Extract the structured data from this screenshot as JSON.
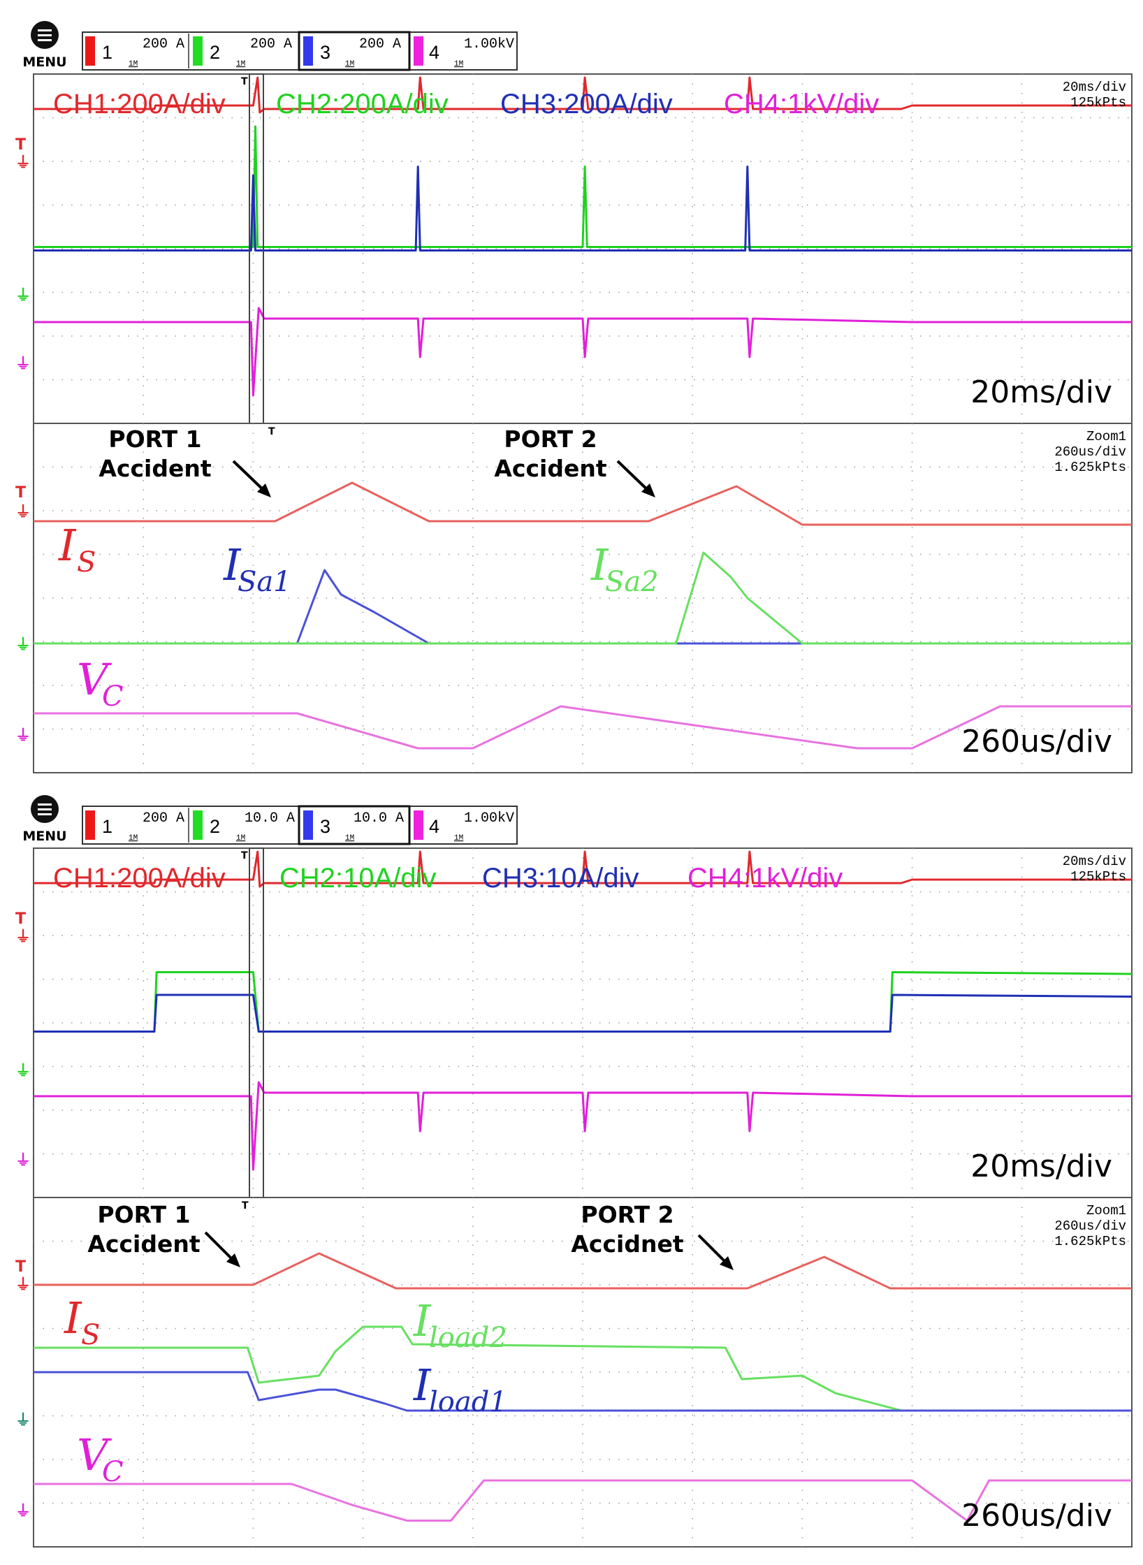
{
  "colors": {
    "ch1": "#e0282c",
    "ch2": "#1fd21f",
    "ch3": "#1f2fb4",
    "ch4": "#e020d8",
    "ch1_light": "#e8615d",
    "ch2_light": "#66e060",
    "ch3_light": "#4a52d8",
    "ch4_light": "#e872e0"
  },
  "icons": {
    "menu": "menu-icon",
    "ground": "ground-marker-icon",
    "trigger": "trigger-icon"
  },
  "panels": [
    {
      "menu_label": "MENU",
      "channels": [
        {
          "num": "1",
          "scale": "200 A",
          "coupling": "1M"
        },
        {
          "num": "2",
          "scale": "200 A",
          "coupling": "1M"
        },
        {
          "num": "3",
          "scale": "200 A",
          "coupling": "1M"
        },
        {
          "num": "4",
          "scale": "1.00kV",
          "coupling": "1M"
        }
      ],
      "main": {
        "labels": [
          "CH1:200A/div",
          "CH2:200A/div",
          "CH3:200A/div",
          "CH4:1kV/div"
        ],
        "info": [
          "20ms/div",
          "125kPts"
        ],
        "timediv": "20ms/div"
      },
      "zoom": {
        "info": [
          "Zoom1",
          "260us/div",
          "1.625kPts"
        ],
        "timediv": "260us/div",
        "annotations": [
          [
            "PORT 1",
            "Accident"
          ],
          [
            "PORT 2",
            "Accident"
          ]
        ],
        "symbols": [
          {
            "main": "I",
            "sub": "S"
          },
          {
            "main": "I",
            "sub": "Sa1"
          },
          {
            "main": "I",
            "sub": "Sa2"
          },
          {
            "main": "V",
            "sub": "C"
          }
        ]
      }
    },
    {
      "menu_label": "MENU",
      "channels": [
        {
          "num": "1",
          "scale": "200 A",
          "coupling": "1M"
        },
        {
          "num": "2",
          "scale": "10.0 A",
          "coupling": "1M"
        },
        {
          "num": "3",
          "scale": "10.0 A",
          "coupling": "1M"
        },
        {
          "num": "4",
          "scale": "1.00kV",
          "coupling": "1M"
        }
      ],
      "main": {
        "labels": [
          "CH1:200A/div",
          "CH2:10A/div",
          "CH3:10A/div",
          "CH4:1kV/div"
        ],
        "info": [
          "20ms/div",
          "125kPts"
        ],
        "timediv": "20ms/div"
      },
      "zoom": {
        "info": [
          "Zoom1",
          "260us/div",
          "1.625kPts"
        ],
        "timediv": "260us/div",
        "annotations": [
          [
            "PORT 1",
            "Accident"
          ],
          [
            "PORT 2",
            "Accidnet"
          ]
        ],
        "symbols": [
          {
            "main": "I",
            "sub": "S"
          },
          {
            "main": "I",
            "sub": "load2"
          },
          {
            "main": "I",
            "sub": "load1"
          },
          {
            "main": "V",
            "sub": "C"
          }
        ]
      }
    }
  ],
  "chart_data": [
    {
      "type": "line",
      "title": "CH1:200A/div CH2:200A/div CH3:200A/div CH4:1kV/div",
      "x_unit": "div (20ms/div)",
      "xlim": [
        0,
        10
      ],
      "ylim": [
        0,
        10
      ],
      "series": [
        {
          "name": "CH1",
          "x": [
            0,
            1.1,
            1.11,
            2.0,
            2.04,
            2.06,
            2.1,
            3.5,
            3.52,
            3.55,
            5.0,
            5.02,
            5.05,
            6.5,
            6.52,
            6.55,
            7.9,
            8.0,
            10
          ],
          "y": [
            9.0,
            9.0,
            9.1,
            9.1,
            9.9,
            8.9,
            9.0,
            9.0,
            9.9,
            9.0,
            9.0,
            9.9,
            9.0,
            9.0,
            9.9,
            9.0,
            9.0,
            9.1,
            9.1
          ]
        },
        {
          "name": "CH2",
          "x": [
            0,
            2.0,
            2.02,
            2.04,
            2.08,
            5.0,
            5.02,
            5.04,
            10
          ],
          "y": [
            5.05,
            5.05,
            8.5,
            5.05,
            5.05,
            5.05,
            7.35,
            5.05,
            5.05
          ]
        },
        {
          "name": "CH3",
          "x": [
            0,
            1.98,
            2.0,
            2.02,
            3.48,
            3.5,
            3.52,
            6.48,
            6.5,
            6.52,
            10
          ],
          "y": [
            4.95,
            4.95,
            7.1,
            4.95,
            4.95,
            7.35,
            4.95,
            4.95,
            7.35,
            4.95,
            4.95
          ]
        },
        {
          "name": "CH4",
          "x": [
            0,
            1.98,
            2.0,
            2.05,
            2.1,
            3.5,
            3.52,
            3.55,
            5.0,
            5.02,
            5.05,
            6.5,
            6.52,
            6.55,
            8.0,
            10
          ],
          "y": [
            2.9,
            2.9,
            0.8,
            3.3,
            3.0,
            3.0,
            1.9,
            3.0,
            3.0,
            1.9,
            3.0,
            3.0,
            1.9,
            3.0,
            2.9,
            2.9
          ]
        }
      ]
    },
    {
      "type": "line",
      "title": "Zoom1 260us/div",
      "x_unit": "div (260us/div)",
      "xlim": [
        0,
        10
      ],
      "ylim": [
        0,
        10
      ],
      "series": [
        {
          "name": "I_S",
          "x": [
            0,
            2.2,
            2.9,
            3.6,
            5.1,
            5.6,
            6.4,
            7.0,
            10
          ],
          "y": [
            7.2,
            7.2,
            8.3,
            7.2,
            7.2,
            7.2,
            8.2,
            7.1,
            7.1
          ]
        },
        {
          "name": "I_Sa1",
          "x": [
            0,
            2.4,
            2.65,
            2.8,
            3.1,
            3.6,
            10
          ],
          "y": [
            3.7,
            3.7,
            5.8,
            5.1,
            4.6,
            3.7,
            3.7
          ]
        },
        {
          "name": "I_Sa2",
          "x": [
            0,
            5.85,
            6.1,
            6.35,
            6.5,
            7.0,
            10
          ],
          "y": [
            3.7,
            3.7,
            6.3,
            5.6,
            5.0,
            3.7,
            3.7
          ]
        },
        {
          "name": "V_C",
          "x": [
            0,
            2.4,
            3.5,
            4.0,
            4.8,
            7.5,
            8.0,
            8.8,
            10
          ],
          "y": [
            1.7,
            1.7,
            0.7,
            0.7,
            1.9,
            0.7,
            0.7,
            1.9,
            1.9
          ]
        }
      ]
    },
    {
      "type": "line",
      "title": "CH1:200A/div CH2:10A/div CH3:10A/div CH4:1kV/div",
      "x_unit": "div (20ms/div)",
      "xlim": [
        0,
        10
      ],
      "ylim": [
        0,
        10
      ],
      "series": [
        {
          "name": "CH1",
          "x": [
            0,
            1.1,
            1.11,
            2.0,
            2.04,
            2.06,
            2.1,
            3.5,
            3.52,
            3.55,
            5.0,
            5.02,
            5.05,
            6.5,
            6.52,
            6.55,
            7.9,
            8.0,
            10
          ],
          "y": [
            9.0,
            9.0,
            9.1,
            9.1,
            9.9,
            8.9,
            9.0,
            9.0,
            9.9,
            9.0,
            9.0,
            9.9,
            9.0,
            9.0,
            9.9,
            9.0,
            9.0,
            9.1,
            9.1
          ]
        },
        {
          "name": "CH2",
          "x": [
            0,
            1.1,
            1.12,
            2.0,
            2.05,
            2.1,
            7.8,
            7.82,
            10
          ],
          "y": [
            4.75,
            4.75,
            6.45,
            6.45,
            4.75,
            4.75,
            4.75,
            6.45,
            6.4
          ]
        },
        {
          "name": "CH3",
          "x": [
            0,
            1.1,
            1.12,
            2.0,
            2.05,
            2.1,
            7.8,
            7.82,
            10
          ],
          "y": [
            4.75,
            4.75,
            5.8,
            5.8,
            4.75,
            4.75,
            4.75,
            5.8,
            5.75
          ]
        },
        {
          "name": "CH4",
          "x": [
            0,
            1.98,
            2.0,
            2.05,
            2.1,
            3.5,
            3.52,
            3.55,
            5.0,
            5.02,
            5.05,
            6.5,
            6.52,
            6.55,
            8.0,
            10
          ],
          "y": [
            2.9,
            2.9,
            0.8,
            3.3,
            3.0,
            3.0,
            1.9,
            3.0,
            3.0,
            1.9,
            3.0,
            3.0,
            1.9,
            3.0,
            2.9,
            2.9
          ]
        }
      ]
    },
    {
      "type": "line",
      "title": "Zoom1 260us/div",
      "x_unit": "div (260us/div)",
      "xlim": [
        0,
        10
      ],
      "ylim": [
        0,
        10
      ],
      "series": [
        {
          "name": "I_S",
          "x": [
            0,
            2.0,
            2.6,
            3.3,
            6.2,
            6.5,
            7.2,
            7.8,
            10
          ],
          "y": [
            7.5,
            7.5,
            8.4,
            7.4,
            7.4,
            7.4,
            8.3,
            7.4,
            7.4
          ]
        },
        {
          "name": "I_load2",
          "x": [
            0,
            1.95,
            2.05,
            2.6,
            2.75,
            3.0,
            3.35,
            3.45,
            6.3,
            6.45,
            7.0,
            7.3,
            7.9,
            10
          ],
          "y": [
            5.7,
            5.7,
            4.7,
            4.9,
            5.6,
            6.3,
            6.3,
            5.8,
            5.7,
            4.8,
            4.9,
            4.4,
            3.9,
            3.9
          ]
        },
        {
          "name": "I_load1",
          "x": [
            0,
            1.95,
            2.05,
            2.6,
            2.75,
            3.2,
            3.4,
            10
          ],
          "y": [
            5.0,
            5.0,
            4.2,
            4.5,
            4.5,
            4.1,
            3.9,
            3.9
          ]
        },
        {
          "name": "V_C",
          "x": [
            0,
            2.35,
            2.9,
            3.4,
            3.8,
            4.1,
            8.0,
            8.5,
            8.7,
            10
          ],
          "y": [
            1.8,
            1.8,
            1.2,
            0.75,
            0.75,
            1.9,
            1.9,
            0.75,
            1.9,
            1.9
          ]
        }
      ]
    }
  ]
}
